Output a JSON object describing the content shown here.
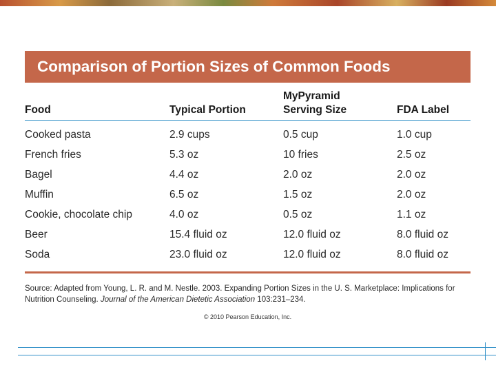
{
  "title": "Comparison of Portion Sizes of Common Foods",
  "columns": {
    "food": "Food",
    "typical": "Typical Portion",
    "mypyramid_line1": "MyPyramid",
    "mypyramid_line2": "Serving Size",
    "fda": "FDA Label"
  },
  "rows": [
    {
      "food": "Cooked pasta",
      "typical": "2.9 cups",
      "serving": "0.5 cup",
      "fda": "1.0 cup"
    },
    {
      "food": "French fries",
      "typical": "5.3 oz",
      "serving": "10 fries",
      "fda": "2.5 oz"
    },
    {
      "food": "Bagel",
      "typical": "4.4 oz",
      "serving": "2.0 oz",
      "fda": "2.0 oz"
    },
    {
      "food": "Muffin",
      "typical": "6.5 oz",
      "serving": "1.5 oz",
      "fda": "2.0 oz"
    },
    {
      "food": "Cookie, chocolate chip",
      "typical": "4.0 oz",
      "serving": "0.5 oz",
      "fda": "1.1 oz"
    },
    {
      "food": "Beer",
      "typical": "15.4 fluid oz",
      "serving": "12.0 fluid oz",
      "fda": "8.0 fluid oz"
    },
    {
      "food": "Soda",
      "typical": "23.0 fluid oz",
      "serving": "12.0 fluid oz",
      "fda": "8.0 fluid oz"
    }
  ],
  "source": {
    "prefix": "Source: Adapted from Young, L. R. and M. Nestle. 2003. Expanding Portion Sizes in the U. S. Marketplace: Implications for Nutrition Counseling. ",
    "journal": "Journal of the American Dietetic Association",
    "suffix": " 103:231–234."
  },
  "copyright": "© 2010 Pearson Education, Inc.",
  "colors": {
    "title_bg": "#c4674a",
    "header_rule": "#2f8fc7",
    "footer_line": "#2f8fc7"
  }
}
